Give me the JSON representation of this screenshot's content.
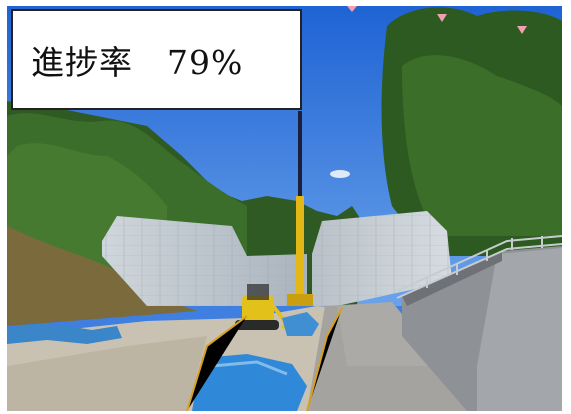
{
  "caption": {
    "text": "進捗率　79%"
  }
}
